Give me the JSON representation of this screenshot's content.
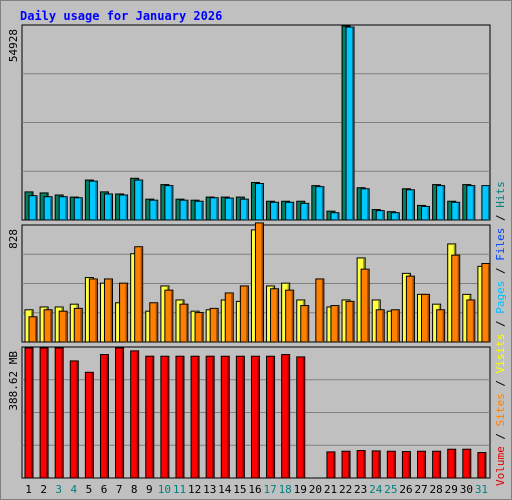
{
  "title": "Daily usage for January 2026",
  "legend": [
    {
      "text": "Volume",
      "color": "#e00000"
    },
    {
      "text": " / ",
      "color": "#000000"
    },
    {
      "text": "Sites",
      "color": "#ff8000"
    },
    {
      "text": " / ",
      "color": "#000000"
    },
    {
      "text": "Visits",
      "color": "#ffff00"
    },
    {
      "text": " / ",
      "color": "#000000"
    },
    {
      "text": "Pages",
      "color": "#00c0ff"
    },
    {
      "text": " / ",
      "color": "#000000"
    },
    {
      "text": "Files",
      "color": "#0040ff"
    },
    {
      "text": " / ",
      "color": "#000000"
    },
    {
      "text": "Hits",
      "color": "#008080"
    }
  ],
  "colors": {
    "hits": "#008060",
    "pages": "#00c8ff",
    "visits": "#ffff40",
    "sites": "#ff8000",
    "volume": "#ff0000",
    "weekend_day": "#008080",
    "weekday": "#000000"
  },
  "chart_data": [
    {
      "type": "bar",
      "title": "Daily usage for January 2026",
      "panel": "hits-pages",
      "ymax_label": "54928",
      "ylim": [
        0,
        54928
      ],
      "categories": [
        "1",
        "2",
        "3",
        "4",
        "5",
        "6",
        "7",
        "8",
        "9",
        "10",
        "11",
        "12",
        "13",
        "14",
        "15",
        "16",
        "17",
        "18",
        "19",
        "20",
        "21",
        "22",
        "23",
        "24",
        "25",
        "26",
        "27",
        "28",
        "29",
        "30",
        "31"
      ],
      "weekend_days": [
        3,
        4,
        10,
        11,
        17,
        18,
        24,
        25,
        31
      ],
      "series": [
        {
          "key": "hits",
          "values": [
            7960,
            7670,
            7080,
            6490,
            11310,
            7960,
            7370,
            11810,
            5900,
            10030,
            5900,
            5610,
            6490,
            6490,
            6490,
            10620,
            5310,
            5310,
            5310,
            9730,
            2500,
            54928,
            9140,
            2950,
            2360,
            8840,
            4130,
            10030,
            5310,
            10030,
            0
          ]
        },
        {
          "key": "pages",
          "values": [
            6880,
            6590,
            6590,
            6300,
            11010,
            7370,
            7080,
            11310,
            5610,
            9730,
            5610,
            5310,
            6300,
            6190,
            5900,
            10320,
            5020,
            5020,
            4720,
            9440,
            2060,
            54630,
            8840,
            2650,
            2060,
            8550,
            3840,
            9730,
            5020,
            9730,
            9730
          ]
        }
      ]
    },
    {
      "type": "bar",
      "panel": "visits-sites",
      "ymax_label": "828",
      "ylim": [
        0,
        828
      ],
      "categories": [
        "1",
        "2",
        "3",
        "4",
        "5",
        "6",
        "7",
        "8",
        "9",
        "10",
        "11",
        "12",
        "13",
        "14",
        "15",
        "16",
        "17",
        "18",
        "19",
        "20",
        "21",
        "22",
        "23",
        "24",
        "25",
        "26",
        "27",
        "28",
        "29",
        "30",
        "31"
      ],
      "series": [
        {
          "key": "visits",
          "values": [
            230,
            250,
            250,
            270,
            460,
            420,
            280,
            630,
            220,
            400,
            300,
            220,
            230,
            300,
            290,
            800,
            400,
            420,
            300,
            0,
            250,
            300,
            600,
            300,
            220,
            490,
            340,
            270,
            700,
            340,
            540
          ]
        },
        {
          "key": "sites",
          "values": [
            180,
            230,
            220,
            240,
            450,
            450,
            420,
            680,
            280,
            370,
            270,
            210,
            240,
            350,
            400,
            850,
            380,
            370,
            260,
            450,
            260,
            290,
            520,
            230,
            230,
            470,
            340,
            230,
            620,
            300,
            560
          ]
        }
      ]
    },
    {
      "type": "bar",
      "panel": "volume",
      "ymax_label": "388.62 MB",
      "unit": "MB",
      "ylim": [
        0,
        388.62
      ],
      "categories": [
        "1",
        "2",
        "3",
        "4",
        "5",
        "6",
        "7",
        "8",
        "9",
        "10",
        "11",
        "12",
        "13",
        "14",
        "15",
        "16",
        "17",
        "18",
        "19",
        "20",
        "21",
        "22",
        "23",
        "24",
        "25",
        "26",
        "27",
        "28",
        "29",
        "30",
        "31"
      ],
      "series": [
        {
          "key": "volume",
          "values": [
            388.6,
            388.6,
            388.6,
            350,
            316,
            369,
            388.6,
            380,
            364,
            364,
            364,
            364,
            364,
            364,
            364,
            364,
            364,
            369,
            362,
            0,
            78,
            80,
            82,
            81,
            80,
            79,
            80,
            80,
            86,
            86,
            76
          ]
        }
      ]
    }
  ]
}
